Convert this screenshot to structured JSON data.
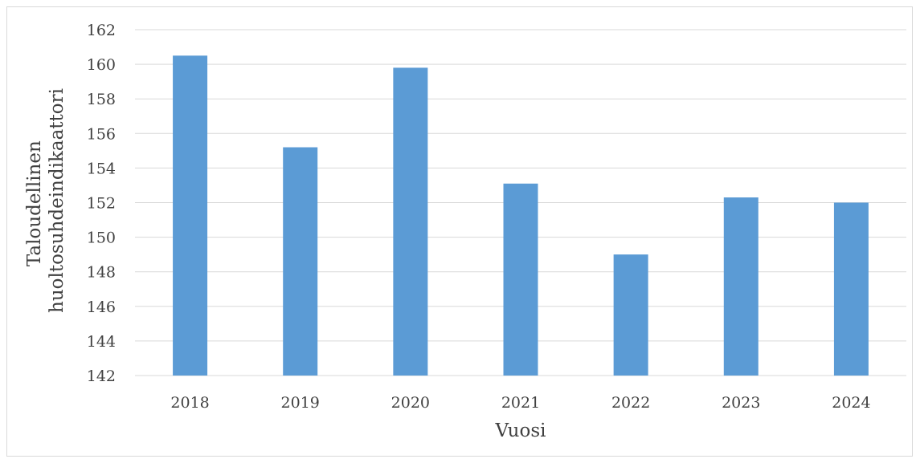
{
  "chart_data": {
    "type": "bar",
    "categories": [
      "2018",
      "2019",
      "2020",
      "2021",
      "2022",
      "2023",
      "2024"
    ],
    "values": [
      160.5,
      155.2,
      159.8,
      153.1,
      149.0,
      152.3,
      152.0
    ],
    "xlabel": "Vuosi",
    "ylabel_lines": [
      "Taloudellinen",
      "huoltosuhdeindikaattori"
    ],
    "ylim": [
      142,
      162
    ],
    "yticks": [
      142,
      144,
      146,
      148,
      150,
      152,
      154,
      156,
      158,
      160,
      162
    ],
    "grid": true,
    "legend": "none",
    "colors": {
      "bar": "#5b9bd5",
      "grid": "#d9d9d9",
      "text": "#404040"
    }
  }
}
